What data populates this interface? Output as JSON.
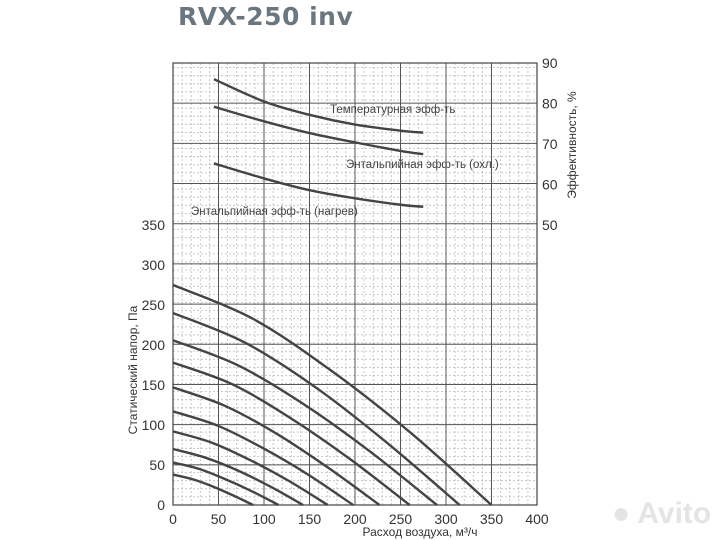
{
  "title": "RVX-250 inv",
  "watermark": "Avito",
  "chart_data": {
    "type": "line",
    "title": "RVX-250 inv",
    "xlabel": "Расход воздуха, м³/ч",
    "ylabel_left": "Статический напор, Па",
    "ylabel_right": "Эффективность, %",
    "xlim": [
      0,
      400
    ],
    "ylim_left": [
      0,
      350
    ],
    "ylim_right": [
      50,
      90
    ],
    "grid": true,
    "x_ticks": [
      "0",
      "50",
      "100",
      "150",
      "200",
      "250",
      "300",
      "350",
      "400"
    ],
    "y_left_ticks": [
      "0",
      "50",
      "100",
      "150",
      "200",
      "250",
      "300",
      "350"
    ],
    "y_right_ticks": [
      "50",
      "60",
      "70",
      "80",
      "90"
    ],
    "efficiency_series": [
      {
        "name": "Температурная эфф-ть",
        "x": [
          45,
          100,
          150,
          200,
          250,
          275
        ],
        "y": [
          86,
          80.5,
          77.2,
          74.8,
          73.3,
          72.8
        ]
      },
      {
        "name": "Энтальпийная эфф-ть (охл.)",
        "x": [
          45,
          100,
          150,
          200,
          250,
          275
        ],
        "y": [
          79.2,
          75.6,
          72.7,
          70.4,
          68.3,
          67.5
        ]
      },
      {
        "name": "Энтальпийная эфф-ть (нагрев)",
        "x": [
          45,
          100,
          150,
          200,
          250,
          275
        ],
        "y": [
          65.2,
          61.5,
          58.6,
          56.6,
          55.0,
          54.5
        ]
      }
    ],
    "pressure_series": [
      {
        "x": [
          0,
          87.5,
          175,
          262.5,
          350
        ],
        "y": [
          275,
          233,
          167,
          89,
          0
        ]
      },
      {
        "x": [
          0,
          79,
          158,
          236,
          315
        ],
        "y": [
          240,
          203,
          146,
          77,
          0
        ]
      },
      {
        "x": [
          0,
          72.5,
          145,
          217.5,
          290
        ],
        "y": [
          206,
          174,
          125,
          66,
          0
        ]
      },
      {
        "x": [
          0,
          65,
          130,
          195,
          260
        ],
        "y": [
          178,
          151,
          108,
          57,
          0
        ]
      },
      {
        "x": [
          0,
          57,
          114,
          170,
          227
        ],
        "y": [
          147,
          124,
          89,
          47,
          0
        ]
      },
      {
        "x": [
          0,
          49.5,
          99,
          148.5,
          198
        ],
        "y": [
          117,
          99,
          71,
          38,
          0
        ]
      },
      {
        "x": [
          0,
          42.5,
          85,
          127.5,
          170
        ],
        "y": [
          92,
          78,
          56,
          30,
          0
        ]
      },
      {
        "x": [
          0,
          36,
          71.5,
          107,
          143
        ],
        "y": [
          70,
          59,
          43,
          23,
          0
        ]
      },
      {
        "x": [
          0,
          29,
          58,
          87,
          116
        ],
        "y": [
          53,
          45,
          32,
          17,
          0
        ]
      },
      {
        "x": [
          0,
          22,
          44,
          66,
          88
        ],
        "y": [
          38,
          32,
          23,
          12,
          0
        ]
      }
    ],
    "colors": {
      "curve": "#444444",
      "grid_major": "#555555",
      "grid_minor": "#bbbbbb",
      "title": "#6b7780"
    }
  }
}
